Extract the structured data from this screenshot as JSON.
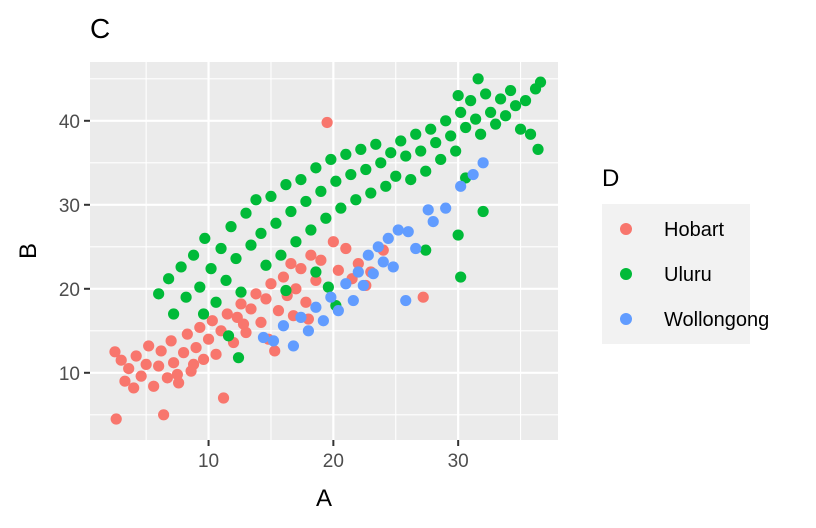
{
  "chart_data": {
    "type": "scatter",
    "title": "C",
    "xlabel": "A",
    "ylabel": "B",
    "xlim": [
      0.5,
      38
    ],
    "ylim": [
      2,
      47
    ],
    "x_ticks": [
      10,
      20,
      30
    ],
    "y_ticks": [
      10,
      20,
      30,
      40
    ],
    "grid": true,
    "legend": {
      "title": "D",
      "position": "right"
    },
    "series": [
      {
        "name": "Hobart",
        "color": "#F8766D",
        "points": [
          [
            2.5,
            12.5
          ],
          [
            2.6,
            4.5
          ],
          [
            3.0,
            11.5
          ],
          [
            3.3,
            9.0
          ],
          [
            3.6,
            10.5
          ],
          [
            4.0,
            8.2
          ],
          [
            4.2,
            12.0
          ],
          [
            4.6,
            9.6
          ],
          [
            5.0,
            11.0
          ],
          [
            5.2,
            13.2
          ],
          [
            5.6,
            8.4
          ],
          [
            6.0,
            10.8
          ],
          [
            6.2,
            12.6
          ],
          [
            6.4,
            5.0
          ],
          [
            6.7,
            9.4
          ],
          [
            7.0,
            13.8
          ],
          [
            7.2,
            11.2
          ],
          [
            7.6,
            8.8
          ],
          [
            8.0,
            12.4
          ],
          [
            8.3,
            14.6
          ],
          [
            8.6,
            10.2
          ],
          [
            9.0,
            13.0
          ],
          [
            9.3,
            15.4
          ],
          [
            9.6,
            11.6
          ],
          [
            10.0,
            14.0
          ],
          [
            10.3,
            16.2
          ],
          [
            10.6,
            12.2
          ],
          [
            11.0,
            15.0
          ],
          [
            11.2,
            7.0
          ],
          [
            11.5,
            17.0
          ],
          [
            12.0,
            13.6
          ],
          [
            12.3,
            16.6
          ],
          [
            12.6,
            18.2
          ],
          [
            13.0,
            14.8
          ],
          [
            13.4,
            17.6
          ],
          [
            13.8,
            19.4
          ],
          [
            14.2,
            16.0
          ],
          [
            14.6,
            18.8
          ],
          [
            15.0,
            20.6
          ],
          [
            15.3,
            12.6
          ],
          [
            15.6,
            17.4
          ],
          [
            16.0,
            21.4
          ],
          [
            16.3,
            19.2
          ],
          [
            16.6,
            23.0
          ],
          [
            17.0,
            20.0
          ],
          [
            17.4,
            22.4
          ],
          [
            17.8,
            18.4
          ],
          [
            18.2,
            24.0
          ],
          [
            18.6,
            21.0
          ],
          [
            19.0,
            23.4
          ],
          [
            19.5,
            39.8
          ],
          [
            20.0,
            25.6
          ],
          [
            20.4,
            22.2
          ],
          [
            21.0,
            24.8
          ],
          [
            21.5,
            21.2
          ],
          [
            22.0,
            23.0
          ],
          [
            22.6,
            20.4
          ],
          [
            23.0,
            22.0
          ],
          [
            24.0,
            24.6
          ],
          [
            27.2,
            19.0
          ],
          [
            7.5,
            9.8
          ],
          [
            8.8,
            11.0
          ],
          [
            12.8,
            15.8
          ],
          [
            14.8,
            14.0
          ],
          [
            16.8,
            16.8
          ],
          [
            18.0,
            16.4
          ]
        ]
      },
      {
        "name": "Uluru",
        "color": "#00BA38",
        "points": [
          [
            6.0,
            19.4
          ],
          [
            6.8,
            21.2
          ],
          [
            7.2,
            17.0
          ],
          [
            7.8,
            22.6
          ],
          [
            8.2,
            19.0
          ],
          [
            8.8,
            24.0
          ],
          [
            9.3,
            20.2
          ],
          [
            9.7,
            26.0
          ],
          [
            10.2,
            22.4
          ],
          [
            10.6,
            18.4
          ],
          [
            11.0,
            24.8
          ],
          [
            11.4,
            21.0
          ],
          [
            11.8,
            27.4
          ],
          [
            12.2,
            23.6
          ],
          [
            12.6,
            19.6
          ],
          [
            13.0,
            29.0
          ],
          [
            13.4,
            25.2
          ],
          [
            13.8,
            30.6
          ],
          [
            14.2,
            26.6
          ],
          [
            14.6,
            22.8
          ],
          [
            15.0,
            31.0
          ],
          [
            15.4,
            27.8
          ],
          [
            15.8,
            24.0
          ],
          [
            16.2,
            32.4
          ],
          [
            16.6,
            29.2
          ],
          [
            17.0,
            25.6
          ],
          [
            17.4,
            33.0
          ],
          [
            17.8,
            30.4
          ],
          [
            18.2,
            27.0
          ],
          [
            18.6,
            34.4
          ],
          [
            19.0,
            31.6
          ],
          [
            19.4,
            28.4
          ],
          [
            19.8,
            35.4
          ],
          [
            20.2,
            32.8
          ],
          [
            20.6,
            29.6
          ],
          [
            21.0,
            36.0
          ],
          [
            21.4,
            33.6
          ],
          [
            21.8,
            30.6
          ],
          [
            22.2,
            36.6
          ],
          [
            22.6,
            34.2
          ],
          [
            23.0,
            31.4
          ],
          [
            23.4,
            37.2
          ],
          [
            23.8,
            35.0
          ],
          [
            24.2,
            32.2
          ],
          [
            24.6,
            36.2
          ],
          [
            25.0,
            33.4
          ],
          [
            25.4,
            37.6
          ],
          [
            25.8,
            35.8
          ],
          [
            26.2,
            33.0
          ],
          [
            26.6,
            38.4
          ],
          [
            27.0,
            36.4
          ],
          [
            27.4,
            34.0
          ],
          [
            27.8,
            39.0
          ],
          [
            28.2,
            37.4
          ],
          [
            28.6,
            35.4
          ],
          [
            29.0,
            40.0
          ],
          [
            29.4,
            38.2
          ],
          [
            29.8,
            36.4
          ],
          [
            30.2,
            41.0
          ],
          [
            30.6,
            39.2
          ],
          [
            31.0,
            42.4
          ],
          [
            31.4,
            40.2
          ],
          [
            31.8,
            38.4
          ],
          [
            32.2,
            43.2
          ],
          [
            32.6,
            41.0
          ],
          [
            33.0,
            39.6
          ],
          [
            33.4,
            42.6
          ],
          [
            33.8,
            40.6
          ],
          [
            34.2,
            43.6
          ],
          [
            34.6,
            41.8
          ],
          [
            35.0,
            39.0
          ],
          [
            35.4,
            42.4
          ],
          [
            35.8,
            38.4
          ],
          [
            36.2,
            43.8
          ],
          [
            36.6,
            44.6
          ],
          [
            36.4,
            36.6
          ],
          [
            31.6,
            45.0
          ],
          [
            30.0,
            43.0
          ],
          [
            30.2,
            21.4
          ],
          [
            30.0,
            26.4
          ],
          [
            27.4,
            24.6
          ],
          [
            18.6,
            22.0
          ],
          [
            19.6,
            20.2
          ],
          [
            20.2,
            18.0
          ],
          [
            16.2,
            19.8
          ],
          [
            12.4,
            11.8
          ],
          [
            9.6,
            17.0
          ],
          [
            11.6,
            14.4
          ],
          [
            32.0,
            29.2
          ],
          [
            30.6,
            33.2
          ]
        ]
      },
      {
        "name": "Wollongong",
        "color": "#619CFF",
        "points": [
          [
            14.4,
            14.2
          ],
          [
            15.2,
            13.8
          ],
          [
            16.0,
            15.6
          ],
          [
            16.8,
            13.2
          ],
          [
            17.4,
            16.6
          ],
          [
            18.0,
            15.0
          ],
          [
            18.6,
            17.8
          ],
          [
            19.2,
            16.2
          ],
          [
            19.8,
            19.0
          ],
          [
            20.4,
            17.4
          ],
          [
            21.0,
            20.6
          ],
          [
            21.6,
            18.6
          ],
          [
            22.0,
            22.0
          ],
          [
            22.4,
            20.4
          ],
          [
            22.8,
            24.0
          ],
          [
            23.2,
            21.8
          ],
          [
            23.6,
            25.0
          ],
          [
            24.0,
            23.2
          ],
          [
            24.4,
            26.0
          ],
          [
            24.8,
            22.6
          ],
          [
            25.2,
            27.0
          ],
          [
            25.8,
            18.6
          ],
          [
            26.6,
            24.8
          ],
          [
            27.6,
            29.4
          ],
          [
            29.0,
            29.6
          ],
          [
            31.2,
            33.6
          ],
          [
            32.0,
            35.0
          ],
          [
            30.2,
            32.2
          ],
          [
            28.0,
            28.0
          ],
          [
            26.0,
            26.8
          ]
        ]
      }
    ]
  }
}
